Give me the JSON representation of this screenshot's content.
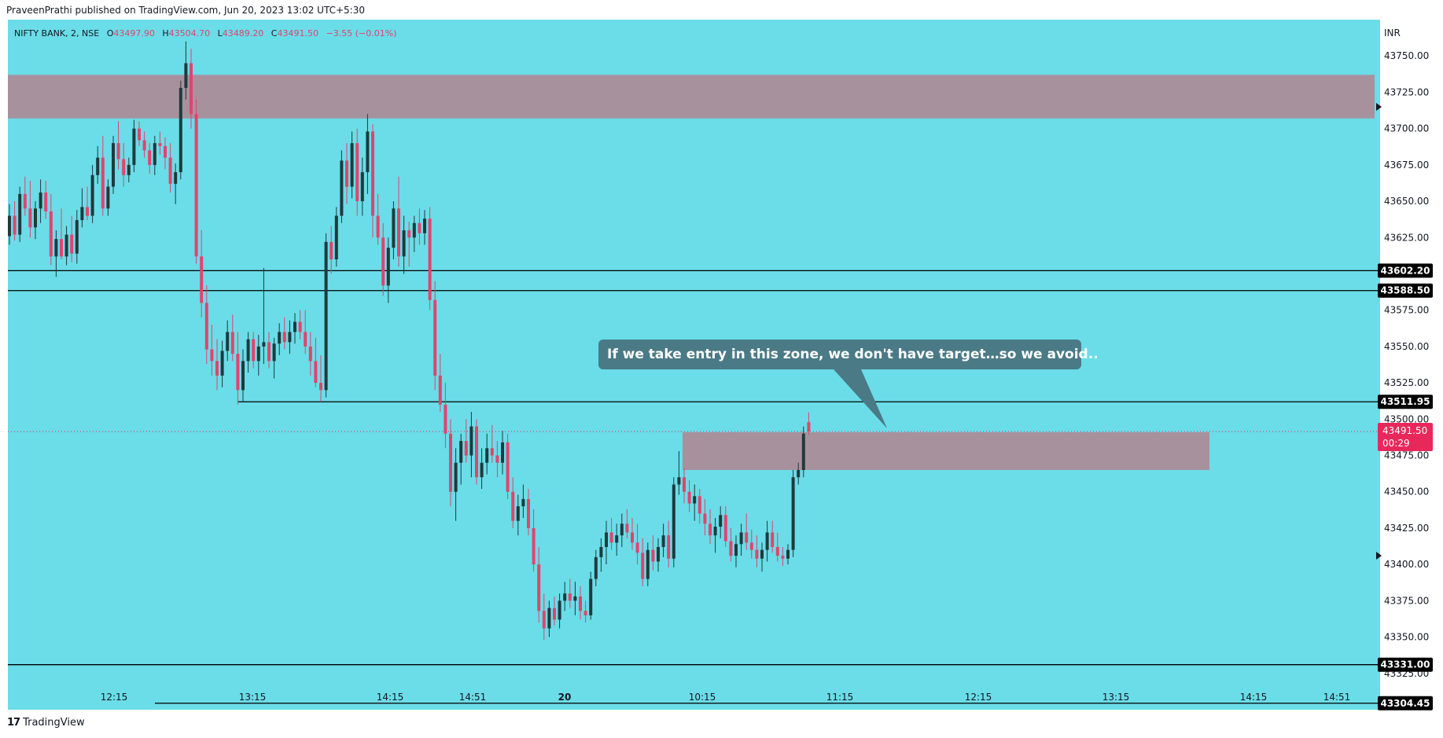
{
  "header": {
    "published": "PraveenPrathi published on TradingView.com, Jun 20, 2023 13:02 UTC+5:30"
  },
  "footer": {
    "brand": "TradingView",
    "logo_glyph": "17"
  },
  "legend": {
    "symbol": "NIFTY BANK, 2, NSE",
    "open_label": "O",
    "open": "43497.90",
    "high_label": "H",
    "high": "43504.70",
    "low_label": "L",
    "low": "43489.20",
    "close_label": "C",
    "close": "43491.50",
    "change": "−3.55 (−0.01%)"
  },
  "currency": "INR",
  "annotation": "If we take entry in this zone, we don't have target…so we avoid..",
  "colors": {
    "background": "#6adde8",
    "up": "#1f3a3d",
    "down": "#e3436d",
    "zone": "#a7919d",
    "callout": "#4a7a86",
    "last_price": "#e8285b"
  },
  "chart_data": {
    "type": "candlestick",
    "symbol": "NIFTY BANK",
    "timeframe": "2",
    "exchange": "NSE",
    "ylim": [
      43300,
      43775
    ],
    "y_ticks": [
      "43750.00",
      "43725.00",
      "43700.00",
      "43675.00",
      "43650.00",
      "43625.00",
      "43600.00",
      "43575.00",
      "43550.00",
      "43525.00",
      "43500.00",
      "43475.00",
      "43450.00",
      "43425.00",
      "43400.00",
      "43375.00",
      "43350.00",
      "43325.00"
    ],
    "x_ticks": [
      "12:15",
      "13:15",
      "14:15",
      "14:51",
      "20",
      "10:15",
      "11:15",
      "12:15",
      "13:15",
      "14:15",
      "14:51"
    ],
    "horizontal_levels": [
      {
        "price": 43602.2,
        "label": "43602.20"
      },
      {
        "price": 43588.5,
        "label": "43588.50"
      },
      {
        "price": 43511.95,
        "label": "43511.95"
      },
      {
        "price": 43331.0,
        "label": "43331.00"
      },
      {
        "price": 43304.45,
        "label": "43304.45"
      }
    ],
    "zones": [
      {
        "from": 43707,
        "to": 43737
      },
      {
        "from": 43465,
        "to": 43491
      }
    ],
    "last_price": {
      "value": 43491.5,
      "label": "43491.50",
      "countdown": "00:29"
    },
    "candles": [
      [
        43626,
        43648,
        43620,
        43640
      ],
      [
        43640,
        43650,
        43623,
        43627
      ],
      [
        43627,
        43660,
        43622,
        43655
      ],
      [
        43655,
        43667,
        43640,
        43645
      ],
      [
        43645,
        43664,
        43625,
        43632
      ],
      [
        43632,
        43650,
        43624,
        43645
      ],
      [
        43645,
        43665,
        43635,
        43656
      ],
      [
        43656,
        43664,
        43638,
        43643
      ],
      [
        43643,
        43655,
        43606,
        43612
      ],
      [
        43612,
        43630,
        43598,
        43624
      ],
      [
        43624,
        43645,
        43610,
        43612
      ],
      [
        43612,
        43633,
        43606,
        43627
      ],
      [
        43627,
        43640,
        43608,
        43614
      ],
      [
        43614,
        43644,
        43607,
        43637
      ],
      [
        43637,
        43659,
        43632,
        43646
      ],
      [
        43646,
        43660,
        43637,
        43640
      ],
      [
        43640,
        43675,
        43635,
        43668
      ],
      [
        43668,
        43688,
        43662,
        43680
      ],
      [
        43680,
        43695,
        43640,
        43645
      ],
      [
        43645,
        43665,
        43640,
        43660
      ],
      [
        43660,
        43695,
        43655,
        43690
      ],
      [
        43690,
        43705,
        43672,
        43679
      ],
      [
        43679,
        43690,
        43660,
        43668
      ],
      [
        43668,
        43680,
        43663,
        43675
      ],
      [
        43675,
        43706,
        43670,
        43700
      ],
      [
        43700,
        43705,
        43688,
        43692
      ],
      [
        43692,
        43698,
        43680,
        43685
      ],
      [
        43685,
        43690,
        43669,
        43675
      ],
      [
        43675,
        43695,
        43668,
        43690
      ],
      [
        43690,
        43698,
        43682,
        43688
      ],
      [
        43688,
        43694,
        43672,
        43680
      ],
      [
        43680,
        43690,
        43656,
        43662
      ],
      [
        43662,
        43676,
        43648,
        43670
      ],
      [
        43670,
        43733,
        43665,
        43728
      ],
      [
        43728,
        43760,
        43720,
        43745
      ],
      [
        43745,
        43755,
        43700,
        43710
      ],
      [
        43710,
        43720,
        43607,
        43612
      ],
      [
        43612,
        43630,
        43570,
        43580
      ],
      [
        43580,
        43592,
        43538,
        43548
      ],
      [
        43548,
        43565,
        43530,
        43540
      ],
      [
        43540,
        43555,
        43520,
        43530
      ],
      [
        43530,
        43554,
        43522,
        43547
      ],
      [
        43547,
        43568,
        43540,
        43560
      ],
      [
        43560,
        43572,
        43540,
        43545
      ],
      [
        43545,
        43560,
        43510,
        43520
      ],
      [
        43520,
        43548,
        43512,
        43540
      ],
      [
        43540,
        43560,
        43532,
        43555
      ],
      [
        43555,
        43560,
        43535,
        43540
      ],
      [
        43540,
        43558,
        43530,
        43550
      ],
      [
        43550,
        43604,
        43538,
        43553
      ],
      [
        43553,
        43560,
        43535,
        43540
      ],
      [
        43540,
        43556,
        43528,
        43552
      ],
      [
        43552,
        43566,
        43544,
        43560
      ],
      [
        43560,
        43570,
        43548,
        43553
      ],
      [
        43553,
        43568,
        43545,
        43560
      ],
      [
        43560,
        43573,
        43552,
        43567
      ],
      [
        43567,
        43575,
        43555,
        43560
      ],
      [
        43560,
        43575,
        43545,
        43550
      ],
      [
        43550,
        43560,
        43530,
        43540
      ],
      [
        43540,
        43556,
        43522,
        43525
      ],
      [
        43525,
        43544,
        43512,
        43520
      ],
      [
        43520,
        43628,
        43515,
        43622
      ],
      [
        43622,
        43633,
        43600,
        43610
      ],
      [
        43610,
        43646,
        43605,
        43640
      ],
      [
        43640,
        43685,
        43635,
        43678
      ],
      [
        43678,
        43690,
        43648,
        43660
      ],
      [
        43660,
        43698,
        43652,
        43690
      ],
      [
        43690,
        43700,
        43640,
        43650
      ],
      [
        43650,
        43680,
        43640,
        43670
      ],
      [
        43670,
        43710,
        43655,
        43698
      ],
      [
        43698,
        43703,
        43625,
        43640
      ],
      [
        43640,
        43655,
        43620,
        43625
      ],
      [
        43625,
        43635,
        43585,
        43592
      ],
      [
        43592,
        43625,
        43580,
        43618
      ],
      [
        43618,
        43650,
        43610,
        43645
      ],
      [
        43645,
        43667,
        43605,
        43612
      ],
      [
        43612,
        43640,
        43600,
        43630
      ],
      [
        43630,
        43636,
        43605,
        43625
      ],
      [
        43625,
        43640,
        43615,
        43635
      ],
      [
        43635,
        43645,
        43620,
        43628
      ],
      [
        43628,
        43644,
        43620,
        43638
      ],
      [
        43638,
        43646,
        43575,
        43582
      ],
      [
        43582,
        43595,
        43520,
        43530
      ],
      [
        43530,
        43545,
        43505,
        43510
      ],
      [
        43510,
        43525,
        43480,
        43490
      ],
      [
        43490,
        43500,
        43440,
        43450
      ],
      [
        43450,
        43480,
        43430,
        43470
      ],
      [
        43470,
        43490,
        43455,
        43485
      ],
      [
        43485,
        43500,
        43470,
        43475
      ],
      [
        43475,
        43505,
        43460,
        43495
      ],
      [
        43495,
        43500,
        43455,
        43460
      ],
      [
        43460,
        43480,
        43452,
        43470
      ],
      [
        43470,
        43490,
        43462,
        43480
      ],
      [
        43480,
        43496,
        43470,
        43475
      ],
      [
        43475,
        43485,
        43460,
        43470
      ],
      [
        43470,
        43492,
        43462,
        43484
      ],
      [
        43484,
        43490,
        43445,
        43450
      ],
      [
        43450,
        43460,
        43425,
        43430
      ],
      [
        43430,
        43448,
        43420,
        43440
      ],
      [
        43440,
        43455,
        43432,
        43445
      ],
      [
        43445,
        43452,
        43420,
        43425
      ],
      [
        43425,
        43438,
        43395,
        43400
      ],
      [
        43400,
        43412,
        43360,
        43368
      ],
      [
        43368,
        43380,
        43348,
        43356
      ],
      [
        43356,
        43375,
        43350,
        43370
      ],
      [
        43370,
        43378,
        43358,
        43362
      ],
      [
        43362,
        43380,
        43356,
        43375
      ],
      [
        43375,
        43388,
        43368,
        43380
      ],
      [
        43380,
        43390,
        43370,
        43375
      ],
      [
        43375,
        43388,
        43365,
        43378
      ],
      [
        43378,
        43385,
        43362,
        43368
      ],
      [
        43368,
        43375,
        43360,
        43365
      ],
      [
        43365,
        43395,
        43362,
        43390
      ],
      [
        43390,
        43410,
        43385,
        43405
      ],
      [
        43405,
        43418,
        43395,
        43412
      ],
      [
        43412,
        43430,
        43400,
        43422
      ],
      [
        43422,
        43432,
        43410,
        43415
      ],
      [
        43415,
        43428,
        43406,
        43420
      ],
      [
        43420,
        43435,
        43412,
        43428
      ],
      [
        43428,
        43438,
        43418,
        43422
      ],
      [
        43422,
        43432,
        43410,
        43415
      ],
      [
        43415,
        43428,
        43400,
        43408
      ],
      [
        43408,
        43418,
        43385,
        43390
      ],
      [
        43390,
        43415,
        43385,
        43410
      ],
      [
        43410,
        43420,
        43396,
        43402
      ],
      [
        43402,
        43418,
        43395,
        43412
      ],
      [
        43412,
        43428,
        43405,
        43420
      ],
      [
        43420,
        43430,
        43398,
        43404
      ],
      [
        43404,
        43460,
        43398,
        43455
      ],
      [
        43455,
        43478,
        43448,
        43460
      ],
      [
        43460,
        43466,
        43442,
        43450
      ],
      [
        43450,
        43458,
        43436,
        43442
      ],
      [
        43442,
        43455,
        43430,
        43447
      ],
      [
        43447,
        43452,
        43428,
        43435
      ],
      [
        43435,
        43445,
        43420,
        43428
      ],
      [
        43428,
        43438,
        43414,
        43420
      ],
      [
        43420,
        43432,
        43408,
        43426
      ],
      [
        43426,
        43440,
        43418,
        43434
      ],
      [
        43434,
        43440,
        43412,
        43416
      ],
      [
        43416,
        43425,
        43402,
        43406
      ],
      [
        43406,
        43420,
        43398,
        43414
      ],
      [
        43414,
        43428,
        43406,
        43422
      ],
      [
        43422,
        43435,
        43410,
        43415
      ],
      [
        43415,
        43424,
        43404,
        43410
      ],
      [
        43410,
        43420,
        43398,
        43404
      ],
      [
        43404,
        43415,
        43395,
        43410
      ],
      [
        43410,
        43430,
        43402,
        43422
      ],
      [
        43422,
        43430,
        43408,
        43412
      ],
      [
        43412,
        43422,
        43402,
        43406
      ],
      [
        43406,
        43412,
        43399,
        43404
      ],
      [
        43404,
        43414,
        43400,
        43410
      ],
      [
        43410,
        43465,
        43405,
        43460
      ],
      [
        43460,
        43470,
        43455,
        43465
      ],
      [
        43465,
        43495,
        43460,
        43490
      ],
      [
        43497.9,
        43504.7,
        43489.2,
        43491.5
      ]
    ]
  }
}
